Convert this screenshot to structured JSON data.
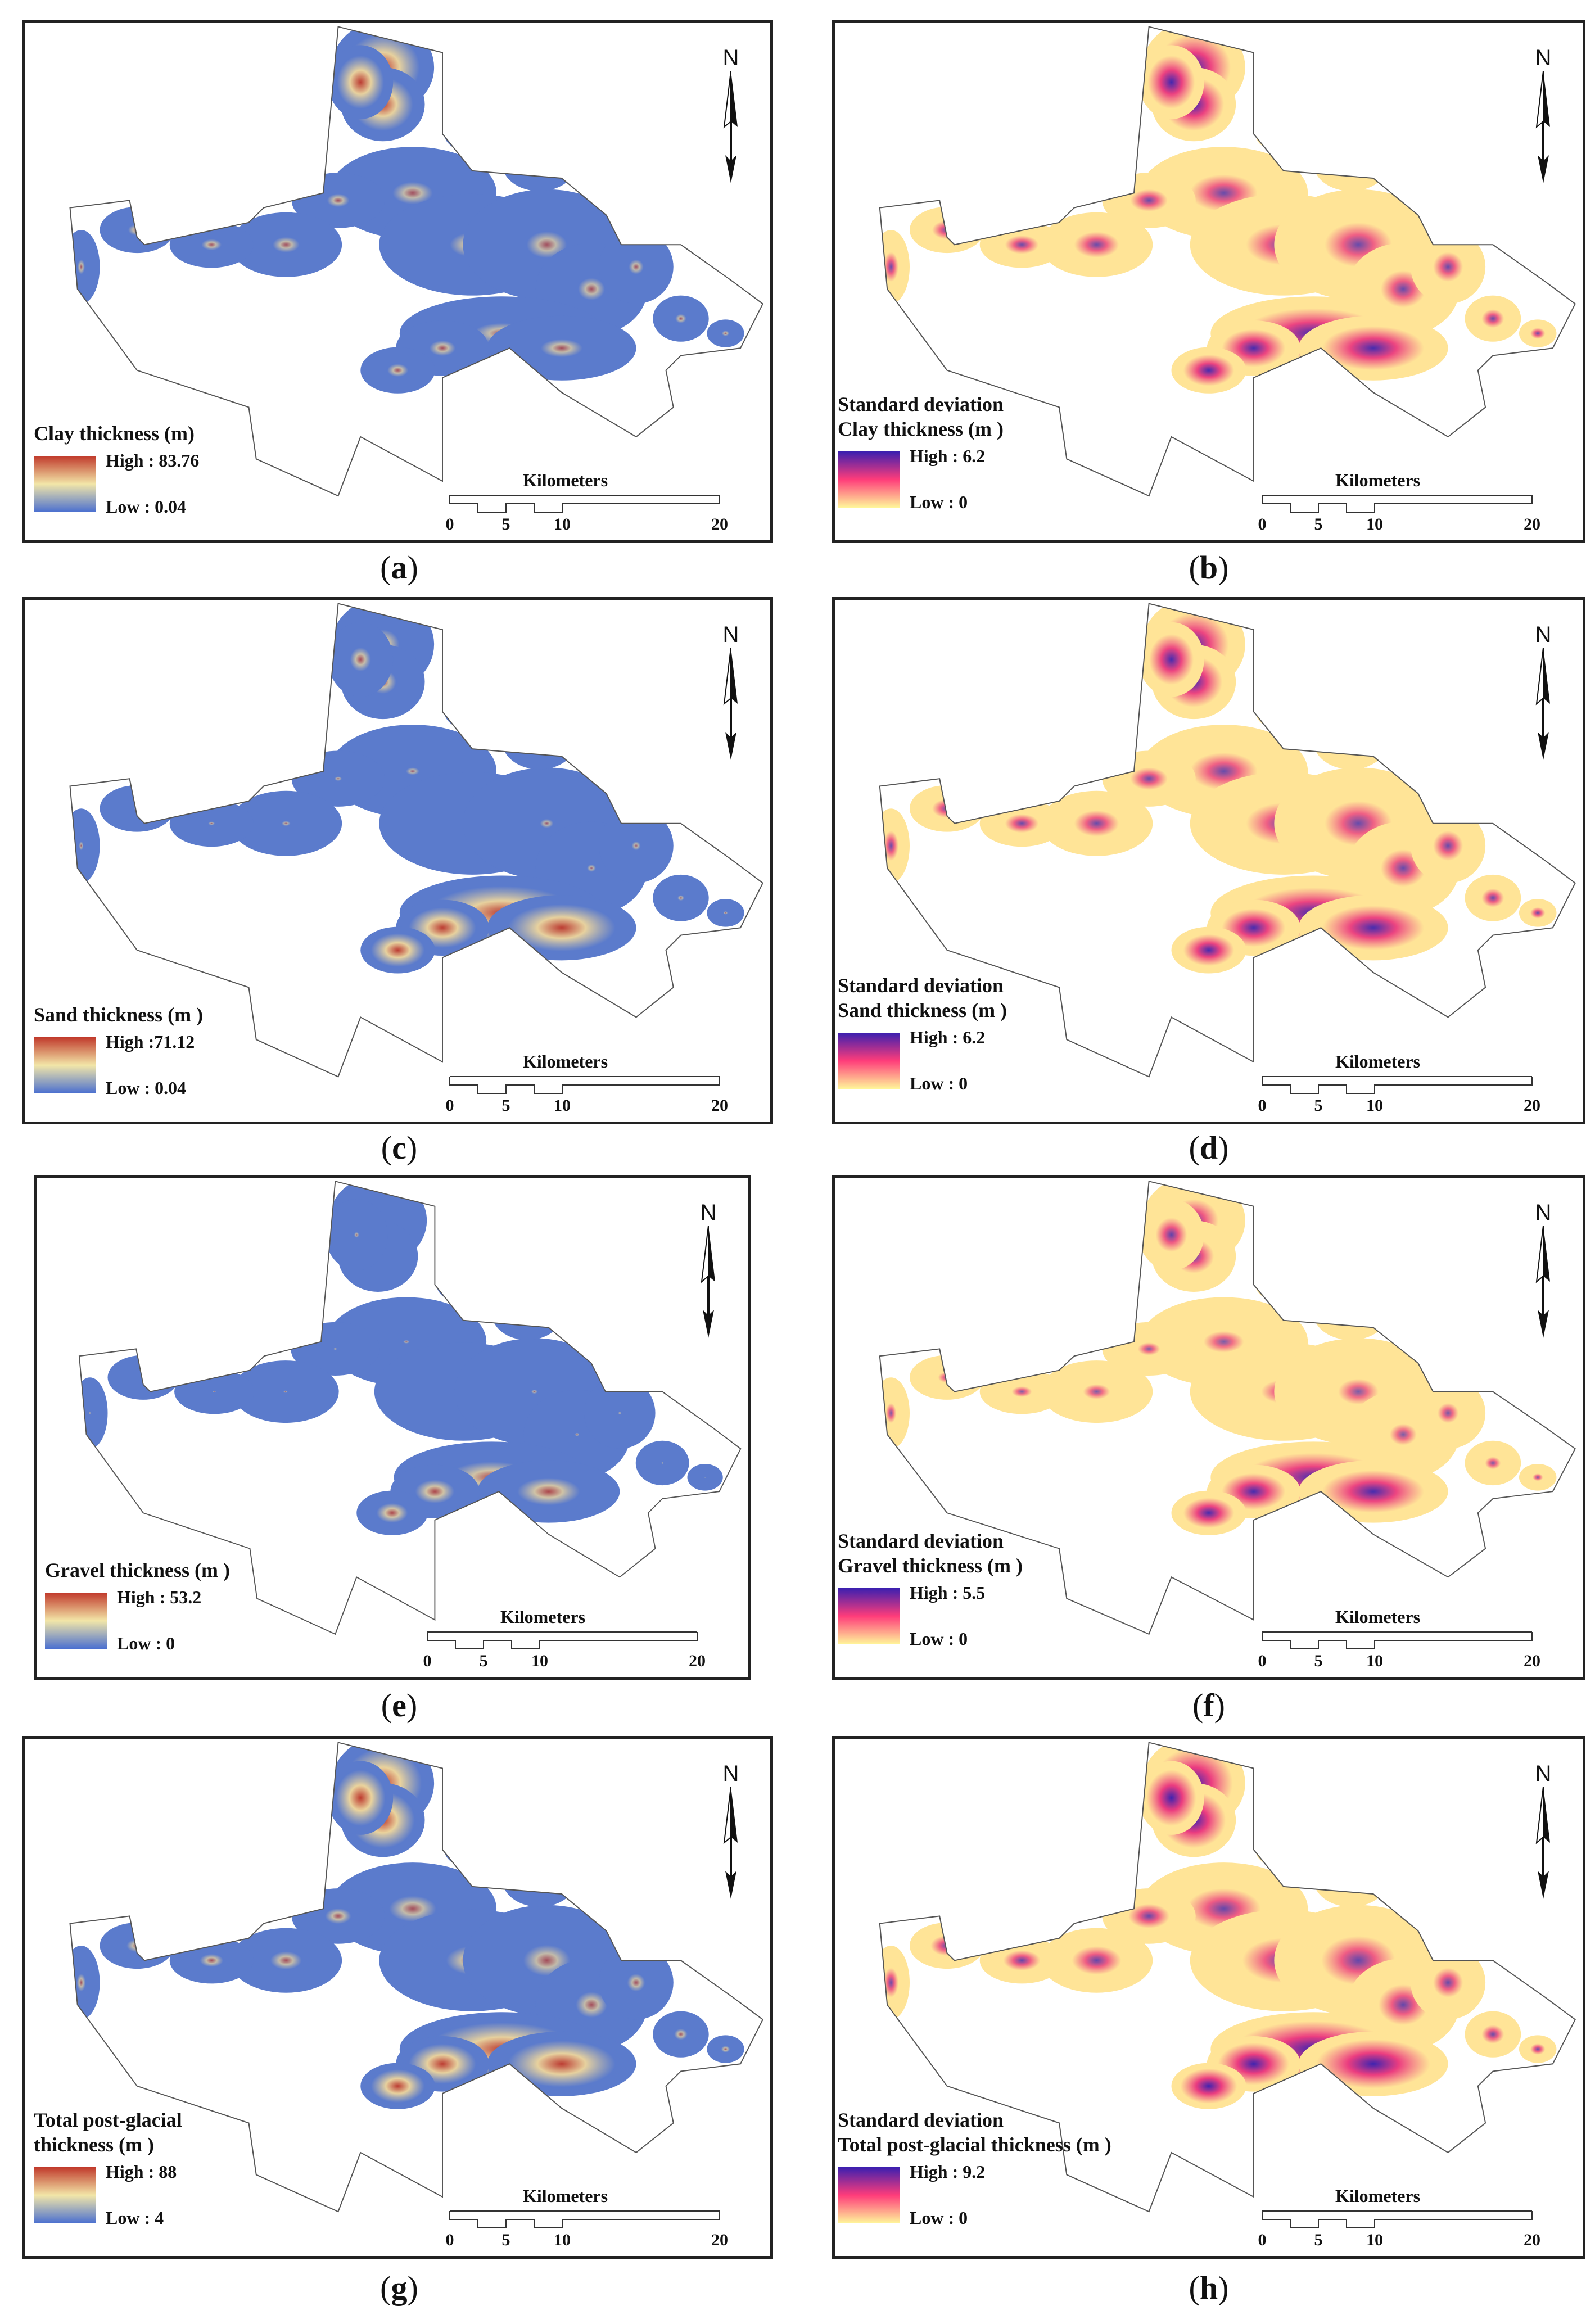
{
  "panels": [
    {
      "letter": "a",
      "legend_title_lines": [
        "Clay thickness (m)"
      ],
      "high": "High : 83.76",
      "low": "Low : 0.04",
      "scheme": "thickness",
      "intensity": [
        0.9,
        0.3,
        0.25,
        0.35
      ]
    },
    {
      "letter": "b",
      "legend_title_lines": [
        "Standard deviation",
        "Clay thickness (m )"
      ],
      "high": "High : 6.2",
      "low": "Low : 0",
      "scheme": "sd",
      "intensity": [
        0.9,
        0.5,
        0.5,
        0.85
      ]
    },
    {
      "letter": "c",
      "legend_title_lines": [
        "Sand thickness (m )"
      ],
      "high": "High :71.12",
      "low": "Low : 0.04",
      "scheme": "thickness",
      "intensity": [
        0.4,
        0.1,
        0.15,
        0.9
      ]
    },
    {
      "letter": "d",
      "legend_title_lines": [
        "Standard deviation",
        "Sand thickness (m )"
      ],
      "high": "High : 6.2",
      "low": "Low : 0",
      "scheme": "sd",
      "intensity": [
        0.85,
        0.5,
        0.5,
        0.85
      ]
    },
    {
      "letter": "e",
      "legend_title_lines": [
        "Gravel thickness (m )"
      ],
      "high": "High : 53.2",
      "low": "Low : 0",
      "scheme": "thickness",
      "intensity": [
        0.1,
        0.05,
        0.05,
        0.55
      ]
    },
    {
      "letter": "f",
      "legend_title_lines": [
        "Standard deviation",
        "Gravel thickness (m )"
      ],
      "high": "High : 5.5",
      "low": "Low : 0",
      "scheme": "sd",
      "intensity": [
        0.6,
        0.3,
        0.35,
        0.85
      ]
    },
    {
      "letter": "g",
      "legend_title_lines": [
        "Total post-glacial",
        "thickness (m )"
      ],
      "high": "High : 88",
      "low": "Low : 4",
      "scheme": "thickness",
      "intensity": [
        0.95,
        0.35,
        0.3,
        0.9
      ]
    },
    {
      "letter": "h",
      "legend_title_lines": [
        "Standard deviation",
        "Total post-glacial thickness (m )"
      ],
      "high": "High : 9.2",
      "low": "Low : 0",
      "scheme": "sd",
      "intensity": [
        0.95,
        0.55,
        0.5,
        0.95
      ]
    }
  ],
  "scale": {
    "label": "Kilometers",
    "ticks": [
      "0",
      "5",
      "10",
      "20"
    ]
  },
  "north_label": "N",
  "colors": {
    "thickness_low": "#4a6fd0",
    "thickness_mid": "#f2e6a8",
    "thickness_high": "#c0392b",
    "sd_low": "#fff79a",
    "sd_mid": "#ff3c7a",
    "sd_high": "#3a1fb0",
    "outline": "#555555"
  }
}
